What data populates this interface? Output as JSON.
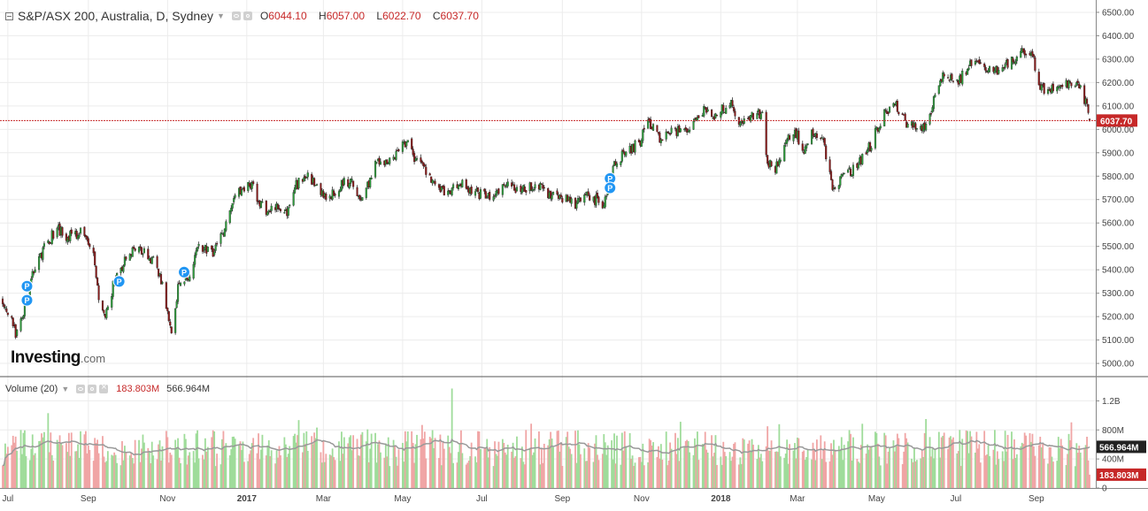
{
  "header": {
    "title": "S&P/ASX 200, Australia, D, Sydney",
    "ohlc": [
      {
        "label": "O",
        "value": "6044.10"
      },
      {
        "label": "H",
        "value": "6057.00"
      },
      {
        "label": "L",
        "value": "6022.70"
      },
      {
        "label": "C",
        "value": "6037.70"
      }
    ]
  },
  "volume_header": {
    "label": "Volume (20)",
    "value_current": "183.803M",
    "value_ma": "566.964M"
  },
  "logo": {
    "main": "Investing",
    "suffix": ".com"
  },
  "colors": {
    "up_body": "#2e9e3c",
    "down_body": "#8b1a1a",
    "price_line": "#c62828",
    "vol_up": "#9fdc9a",
    "vol_down": "#f0a5a5",
    "vol_ma": "#999999",
    "marker": "#2196f3"
  },
  "chart_data": [
    {
      "type": "candlestick",
      "title": "S&P/ASX 200, Australia, D, Sydney",
      "ylim": [
        4970,
        6530
      ],
      "y_ticks": [
        "6500.00",
        "6400.00",
        "6300.00",
        "6200.00",
        "6100.00",
        "6000.00",
        "5900.00",
        "5800.00",
        "5700.00",
        "5600.00",
        "5500.00",
        "5400.00",
        "5300.00",
        "5200.00",
        "5100.00",
        "5000.00"
      ],
      "x_ticks": [
        "Jul",
        "Sep",
        "Nov",
        "2017",
        "Mar",
        "May",
        "Jul",
        "Sep",
        "Nov",
        "2018",
        "Mar",
        "May",
        "Jul",
        "Sep"
      ],
      "x_tick_months": [
        "2016-07",
        "2016-09",
        "2016-11",
        "2017-01",
        "2017-03",
        "2017-05",
        "2017-07",
        "2017-09",
        "2017-11",
        "2018-01",
        "2018-03",
        "2018-05",
        "2018-07",
        "2018-09"
      ],
      "range_start": "2016-06-27",
      "range_end": "2018-10-12",
      "last_price": "6037.70",
      "last_price_value": 6037.7,
      "close_path": [
        [
          "2016-06-27",
          5270
        ],
        [
          "2016-07-01",
          5230
        ],
        [
          "2016-07-07",
          5120
        ],
        [
          "2016-07-14",
          5240
        ],
        [
          "2016-07-22",
          5420
        ],
        [
          "2016-08-01",
          5520
        ],
        [
          "2016-08-08",
          5580
        ],
        [
          "2016-08-15",
          5540
        ],
        [
          "2016-08-26",
          5560
        ],
        [
          "2016-09-05",
          5470
        ],
        [
          "2016-09-09",
          5280
        ],
        [
          "2016-09-14",
          5210
        ],
        [
          "2016-09-21",
          5350
        ],
        [
          "2016-09-30",
          5450
        ],
        [
          "2016-10-07",
          5480
        ],
        [
          "2016-10-14",
          5470
        ],
        [
          "2016-10-21",
          5440
        ],
        [
          "2016-10-28",
          5330
        ],
        [
          "2016-11-04",
          5130
        ],
        [
          "2016-11-09",
          5320
        ],
        [
          "2016-11-16",
          5360
        ],
        [
          "2016-11-25",
          5500
        ],
        [
          "2016-12-05",
          5470
        ],
        [
          "2016-12-14",
          5570
        ],
        [
          "2016-12-23",
          5720
        ],
        [
          "2017-01-03",
          5780
        ],
        [
          "2017-01-10",
          5700
        ],
        [
          "2017-01-17",
          5640
        ],
        [
          "2017-01-24",
          5680
        ],
        [
          "2017-02-01",
          5640
        ],
        [
          "2017-02-08",
          5760
        ],
        [
          "2017-02-17",
          5800
        ],
        [
          "2017-02-27",
          5740
        ],
        [
          "2017-03-06",
          5710
        ],
        [
          "2017-03-14",
          5760
        ],
        [
          "2017-03-22",
          5780
        ],
        [
          "2017-03-31",
          5690
        ],
        [
          "2017-04-10",
          5860
        ],
        [
          "2017-04-20",
          5850
        ],
        [
          "2017-04-28",
          5920
        ],
        [
          "2017-05-05",
          5940
        ],
        [
          "2017-05-12",
          5860
        ],
        [
          "2017-05-19",
          5830
        ],
        [
          "2017-05-26",
          5760
        ],
        [
          "2017-06-05",
          5720
        ],
        [
          "2017-06-14",
          5780
        ],
        [
          "2017-06-23",
          5730
        ],
        [
          "2017-06-30",
          5720
        ],
        [
          "2017-07-10",
          5700
        ],
        [
          "2017-07-20",
          5760
        ],
        [
          "2017-07-31",
          5740
        ],
        [
          "2017-08-10",
          5760
        ],
        [
          "2017-08-21",
          5730
        ],
        [
          "2017-08-31",
          5710
        ],
        [
          "2017-09-11",
          5680
        ],
        [
          "2017-09-21",
          5720
        ],
        [
          "2017-10-02",
          5680
        ],
        [
          "2017-10-06",
          5750
        ],
        [
          "2017-10-12",
          5860
        ],
        [
          "2017-10-20",
          5900
        ],
        [
          "2017-10-31",
          5950
        ],
        [
          "2017-11-06",
          6040
        ],
        [
          "2017-11-14",
          5960
        ],
        [
          "2017-11-24",
          5990
        ],
        [
          "2017-12-04",
          5990
        ],
        [
          "2017-12-12",
          6040
        ],
        [
          "2017-12-20",
          6080
        ],
        [
          "2017-12-29",
          6060
        ],
        [
          "2018-01-08",
          6120
        ],
        [
          "2018-01-17",
          6020
        ],
        [
          "2018-01-24",
          6050
        ],
        [
          "2018-02-02",
          6070
        ],
        [
          "2018-02-06",
          5860
        ],
        [
          "2018-02-12",
          5830
        ],
        [
          "2018-02-21",
          5970
        ],
        [
          "2018-02-27",
          6000
        ],
        [
          "2018-03-06",
          5900
        ],
        [
          "2018-03-12",
          5990
        ],
        [
          "2018-03-20",
          5960
        ],
        [
          "2018-03-28",
          5760
        ],
        [
          "2018-04-06",
          5800
        ],
        [
          "2018-04-16",
          5840
        ],
        [
          "2018-04-26",
          5930
        ],
        [
          "2018-05-07",
          6070
        ],
        [
          "2018-05-16",
          6100
        ],
        [
          "2018-05-24",
          6020
        ],
        [
          "2018-06-01",
          6010
        ],
        [
          "2018-06-08",
          6010
        ],
        [
          "2018-06-15",
          6140
        ],
        [
          "2018-06-22",
          6240
        ],
        [
          "2018-07-02",
          6190
        ],
        [
          "2018-07-12",
          6280
        ],
        [
          "2018-07-23",
          6260
        ],
        [
          "2018-08-02",
          6250
        ],
        [
          "2018-08-14",
          6300
        ],
        [
          "2018-08-22",
          6330
        ],
        [
          "2018-08-29",
          6320
        ],
        [
          "2018-09-04",
          6180
        ],
        [
          "2018-09-10",
          6160
        ],
        [
          "2018-09-19",
          6190
        ],
        [
          "2018-09-27",
          6190
        ],
        [
          "2018-10-05",
          6180
        ],
        [
          "2018-10-10",
          6090
        ],
        [
          "2018-10-12",
          6037.7
        ]
      ],
      "markers": [
        {
          "label": "P",
          "date": "2016-07-13",
          "price": 5330
        },
        {
          "label": "P",
          "date": "2016-07-13",
          "price": 5270
        },
        {
          "label": "P",
          "date": "2016-09-22",
          "price": 5350
        },
        {
          "label": "P",
          "date": "2016-11-11",
          "price": 5390
        },
        {
          "label": "P",
          "date": "2017-10-05",
          "price": 5790
        },
        {
          "label": "P",
          "date": "2017-10-05",
          "price": 5750
        }
      ]
    },
    {
      "type": "bar",
      "title": "Volume (20)",
      "ylim": [
        0,
        1400
      ],
      "y_ticks": [
        "1.2B",
        "800M",
        "400M",
        "0"
      ],
      "y_tick_values": [
        1200,
        800,
        400,
        0
      ],
      "current_volume": "183.803M",
      "current_volume_value": 183.803,
      "volume_ma": "566.964M",
      "volume_ma_value": 566.964,
      "typical_range_m": [
        300,
        800
      ],
      "spikes": [
        {
          "date": "2017-06-08",
          "value": 1370
        },
        {
          "date": "2018-02-06",
          "value": 850
        },
        {
          "date": "2018-06-08",
          "value": 950
        }
      ]
    }
  ]
}
